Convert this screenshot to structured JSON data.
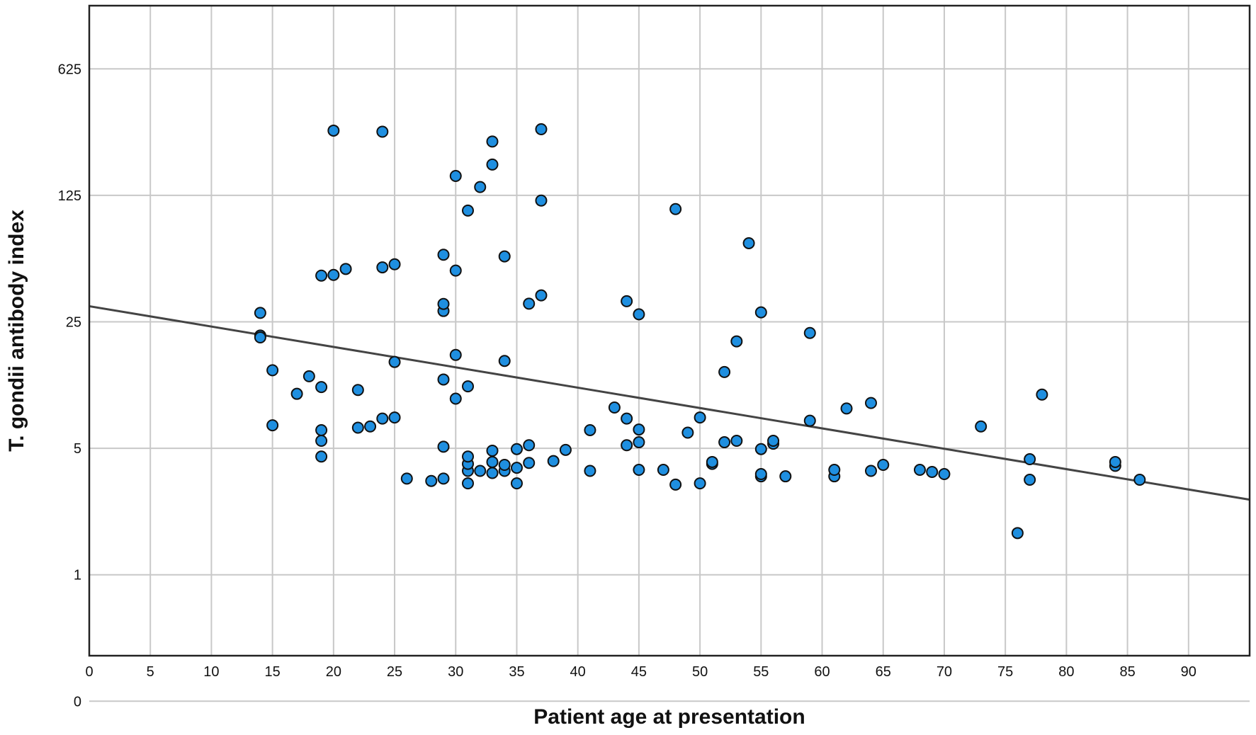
{
  "chart_data": {
    "type": "scatter",
    "title": "",
    "xlabel": "Patient age at presentation",
    "ylabel": "T. gondii antibody index",
    "y_scale": "log5",
    "xlim": [
      0,
      95
    ],
    "x_ticks": [
      0,
      5,
      10,
      15,
      20,
      25,
      30,
      35,
      40,
      45,
      50,
      55,
      60,
      65,
      70,
      75,
      80,
      85,
      90
    ],
    "y_ticks": [
      {
        "label": "0",
        "exp": -1
      },
      {
        "label": "1",
        "exp": 0
      },
      {
        "label": "5",
        "exp": 1
      },
      {
        "label": "25",
        "exp": 2
      },
      {
        "label": "125",
        "exp": 3
      },
      {
        "label": "625",
        "exp": 4
      }
    ],
    "y_exp_range": [
      -0.64,
      4.5
    ],
    "grid": true,
    "marker_color": "#1f8fe0",
    "trendline": {
      "x": [
        0,
        95
      ],
      "y": [
        30.5,
        2.6
      ]
    },
    "points": [
      {
        "x": 14,
        "y": 28
      },
      {
        "x": 14,
        "y": 21
      },
      {
        "x": 14,
        "y": 20.5
      },
      {
        "x": 15,
        "y": 13.5
      },
      {
        "x": 15,
        "y": 6.7
      },
      {
        "x": 17,
        "y": 10
      },
      {
        "x": 18,
        "y": 12.5
      },
      {
        "x": 19,
        "y": 10.9
      },
      {
        "x": 19,
        "y": 6.3
      },
      {
        "x": 19,
        "y": 5.5
      },
      {
        "x": 19,
        "y": 4.5
      },
      {
        "x": 19,
        "y": 45
      },
      {
        "x": 20,
        "y": 45.4
      },
      {
        "x": 20,
        "y": 285
      },
      {
        "x": 21,
        "y": 49
      },
      {
        "x": 22,
        "y": 10.5
      },
      {
        "x": 22,
        "y": 6.5
      },
      {
        "x": 23,
        "y": 6.6
      },
      {
        "x": 24,
        "y": 7.3
      },
      {
        "x": 24,
        "y": 50
      },
      {
        "x": 24,
        "y": 281
      },
      {
        "x": 25,
        "y": 7.4
      },
      {
        "x": 25,
        "y": 15
      },
      {
        "x": 25,
        "y": 52
      },
      {
        "x": 26,
        "y": 3.4
      },
      {
        "x": 28,
        "y": 3.3
      },
      {
        "x": 29,
        "y": 3.4
      },
      {
        "x": 29,
        "y": 5.1
      },
      {
        "x": 29,
        "y": 12
      },
      {
        "x": 29,
        "y": 28.7
      },
      {
        "x": 29,
        "y": 31.4
      },
      {
        "x": 29,
        "y": 58.7
      },
      {
        "x": 30,
        "y": 9.4
      },
      {
        "x": 30,
        "y": 16.4
      },
      {
        "x": 30,
        "y": 48
      },
      {
        "x": 30,
        "y": 160
      },
      {
        "x": 31,
        "y": 3.2
      },
      {
        "x": 31,
        "y": 3.75
      },
      {
        "x": 31,
        "y": 4.1
      },
      {
        "x": 31,
        "y": 4.5
      },
      {
        "x": 31,
        "y": 11
      },
      {
        "x": 31,
        "y": 103
      },
      {
        "x": 32,
        "y": 3.75
      },
      {
        "x": 32,
        "y": 139
      },
      {
        "x": 33,
        "y": 3.65
      },
      {
        "x": 33,
        "y": 4.2
      },
      {
        "x": 33,
        "y": 4.85
      },
      {
        "x": 33,
        "y": 185
      },
      {
        "x": 33,
        "y": 248
      },
      {
        "x": 34,
        "y": 3.75
      },
      {
        "x": 34,
        "y": 4.05
      },
      {
        "x": 34,
        "y": 15.2
      },
      {
        "x": 34,
        "y": 57.5
      },
      {
        "x": 35,
        "y": 3.2
      },
      {
        "x": 35,
        "y": 3.9
      },
      {
        "x": 35,
        "y": 4.95
      },
      {
        "x": 36,
        "y": 4.15
      },
      {
        "x": 36,
        "y": 5.2
      },
      {
        "x": 36,
        "y": 31.5
      },
      {
        "x": 37,
        "y": 35
      },
      {
        "x": 37,
        "y": 117
      },
      {
        "x": 37,
        "y": 290
      },
      {
        "x": 38,
        "y": 4.25
      },
      {
        "x": 39,
        "y": 4.9
      },
      {
        "x": 41,
        "y": 3.75
      },
      {
        "x": 41,
        "y": 6.3
      },
      {
        "x": 43,
        "y": 8.4
      },
      {
        "x": 44,
        "y": 5.2
      },
      {
        "x": 44,
        "y": 7.3
      },
      {
        "x": 44,
        "y": 32.5
      },
      {
        "x": 45,
        "y": 3.8
      },
      {
        "x": 45,
        "y": 5.4
      },
      {
        "x": 45,
        "y": 6.35
      },
      {
        "x": 45,
        "y": 27.5
      },
      {
        "x": 47,
        "y": 3.8
      },
      {
        "x": 48,
        "y": 3.15
      },
      {
        "x": 48,
        "y": 105
      },
      {
        "x": 49,
        "y": 6.1
      },
      {
        "x": 50,
        "y": 3.2
      },
      {
        "x": 50,
        "y": 7.4
      },
      {
        "x": 51,
        "y": 4.1
      },
      {
        "x": 51,
        "y": 4.2
      },
      {
        "x": 52,
        "y": 5.4
      },
      {
        "x": 52,
        "y": 13.2
      },
      {
        "x": 53,
        "y": 5.5
      },
      {
        "x": 53,
        "y": 19.5
      },
      {
        "x": 54,
        "y": 68
      },
      {
        "x": 55,
        "y": 3.5
      },
      {
        "x": 55,
        "y": 3.6
      },
      {
        "x": 55,
        "y": 4.95
      },
      {
        "x": 55,
        "y": 28.2
      },
      {
        "x": 56,
        "y": 5.3
      },
      {
        "x": 56,
        "y": 5.5
      },
      {
        "x": 57,
        "y": 3.5
      },
      {
        "x": 59,
        "y": 7.1
      },
      {
        "x": 59,
        "y": 21.7
      },
      {
        "x": 61,
        "y": 3.5
      },
      {
        "x": 61,
        "y": 3.8
      },
      {
        "x": 62,
        "y": 8.3
      },
      {
        "x": 64,
        "y": 3.75
      },
      {
        "x": 64,
        "y": 8.9
      },
      {
        "x": 65,
        "y": 4.05
      },
      {
        "x": 68,
        "y": 3.8
      },
      {
        "x": 69,
        "y": 3.7
      },
      {
        "x": 70,
        "y": 3.6
      },
      {
        "x": 73,
        "y": 6.6
      },
      {
        "x": 76,
        "y": 1.7
      },
      {
        "x": 77,
        "y": 3.35
      },
      {
        "x": 77,
        "y": 4.35
      },
      {
        "x": 78,
        "y": 9.9
      },
      {
        "x": 84,
        "y": 4.0
      },
      {
        "x": 84,
        "y": 4.2
      },
      {
        "x": 86,
        "y": 3.35
      }
    ]
  }
}
